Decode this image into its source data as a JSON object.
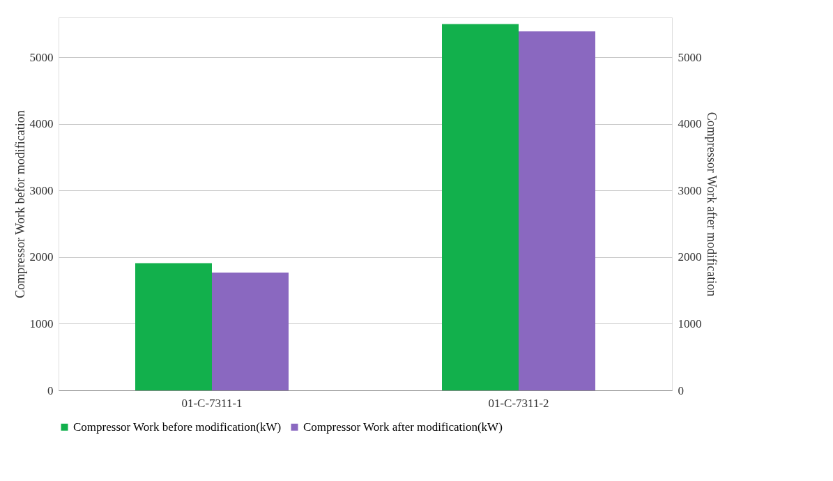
{
  "chart_data": {
    "type": "bar",
    "categories": [
      "01-C-7311-1",
      "01-C-7311-2"
    ],
    "series": [
      {
        "name": "Compressor Work before modification(kW)",
        "color": "#12b04c",
        "values": [
          1910,
          5500
        ]
      },
      {
        "name": "Compressor Work after modification(kW)",
        "color": "#8a68c0",
        "values": [
          1770,
          5390
        ],
        "axis": "y2"
      }
    ],
    "ylabel": "Compressor Work befor modification",
    "y2label": "Compressor Work after modification",
    "ylim": [
      0,
      5600
    ],
    "yticks": [
      0,
      1000,
      2000,
      3000,
      4000,
      5000
    ],
    "y2lim": [
      0,
      5600
    ],
    "y2ticks": [
      0,
      1000,
      2000,
      3000,
      4000,
      5000
    ],
    "grid": "y",
    "legend": "bottom"
  }
}
